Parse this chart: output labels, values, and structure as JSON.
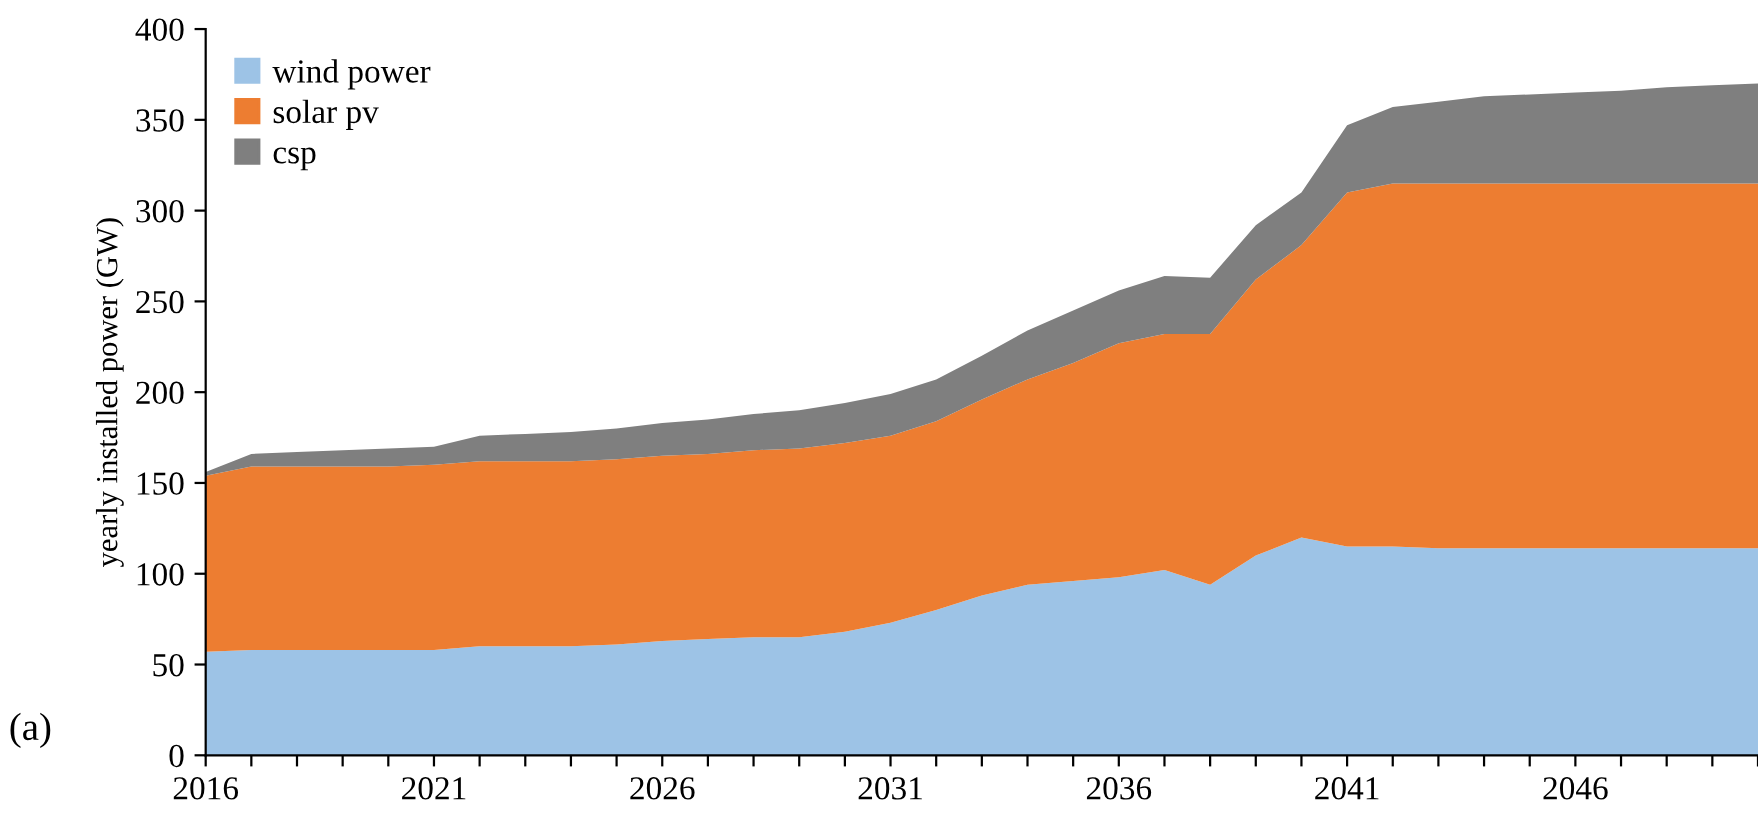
{
  "chart_data": {
    "type": "area",
    "stacked": true,
    "ylabel": "yearly installed power (GW)",
    "annotations": [
      "(a)"
    ],
    "x": [
      2016,
      2017,
      2018,
      2019,
      2020,
      2021,
      2022,
      2023,
      2024,
      2025,
      2026,
      2027,
      2028,
      2029,
      2030,
      2031,
      2032,
      2033,
      2034,
      2035,
      2036,
      2037,
      2038,
      2039,
      2040,
      2041,
      2042,
      2043,
      2044,
      2045,
      2046,
      2047,
      2048,
      2049,
      2050
    ],
    "series": [
      {
        "name": "wind power",
        "color": "#9dc3e6",
        "values": [
          57,
          58,
          58,
          58,
          58,
          58,
          60,
          60,
          60,
          61,
          63,
          64,
          65,
          65,
          68,
          73,
          80,
          88,
          94,
          96,
          98,
          102,
          94,
          110,
          120,
          115,
          115,
          114,
          114,
          114,
          114,
          114,
          114,
          114,
          114
        ]
      },
      {
        "name": "solar pv",
        "color": "#ed7d31",
        "values": [
          97,
          101,
          101,
          101,
          101,
          102,
          102,
          102,
          102,
          102,
          102,
          102,
          103,
          104,
          104,
          103,
          104,
          108,
          113,
          120,
          129,
          130,
          138,
          152,
          161,
          195,
          200,
          201,
          201,
          201,
          201,
          201,
          201,
          201,
          201
        ]
      },
      {
        "name": "csp",
        "color": "#7f7f7f",
        "values": [
          2,
          7,
          8,
          9,
          10,
          10,
          14,
          15,
          16,
          17,
          18,
          19,
          20,
          21,
          22,
          23,
          23,
          24,
          27,
          29,
          29,
          32,
          31,
          30,
          29,
          37,
          42,
          45,
          48,
          49,
          50,
          51,
          53,
          54,
          55
        ]
      }
    ],
    "xlim": [
      2016,
      2050
    ],
    "xticks": [
      2016,
      {
        "value": 2017,
        "label": null
      },
      {
        "value": 2018,
        "label": null
      },
      {
        "value": 2019,
        "label": null
      },
      {
        "value": 2020,
        "label": null
      },
      2021,
      {
        "value": 2022,
        "label": null
      },
      {
        "value": 2023,
        "label": null
      },
      {
        "value": 2024,
        "label": null
      },
      {
        "value": 2025,
        "label": null
      },
      2026,
      {
        "value": 2027,
        "label": null
      },
      {
        "value": 2028,
        "label": null
      },
      {
        "value": 2029,
        "label": null
      },
      {
        "value": 2030,
        "label": null
      },
      2031,
      {
        "value": 2032,
        "label": null
      },
      {
        "value": 2033,
        "label": null
      },
      {
        "value": 2034,
        "label": null
      },
      {
        "value": 2035,
        "label": null
      },
      2036,
      {
        "value": 2037,
        "label": null
      },
      {
        "value": 2038,
        "label": null
      },
      {
        "value": 2039,
        "label": null
      },
      {
        "value": 2040,
        "label": null
      },
      2041,
      {
        "value": 2042,
        "label": null
      },
      {
        "value": 2043,
        "label": null
      },
      {
        "value": 2044,
        "label": null
      },
      {
        "value": 2045,
        "label": null
      },
      2046,
      {
        "value": 2047,
        "label": null
      },
      {
        "value": 2048,
        "label": null
      },
      {
        "value": 2049,
        "label": null
      },
      {
        "value": 2050,
        "label": null
      }
    ],
    "ylim": [
      0,
      400
    ],
    "yticks": [
      0,
      50,
      100,
      150,
      200,
      250,
      300,
      350,
      400
    ],
    "grid": false,
    "legend": "top left"
  }
}
